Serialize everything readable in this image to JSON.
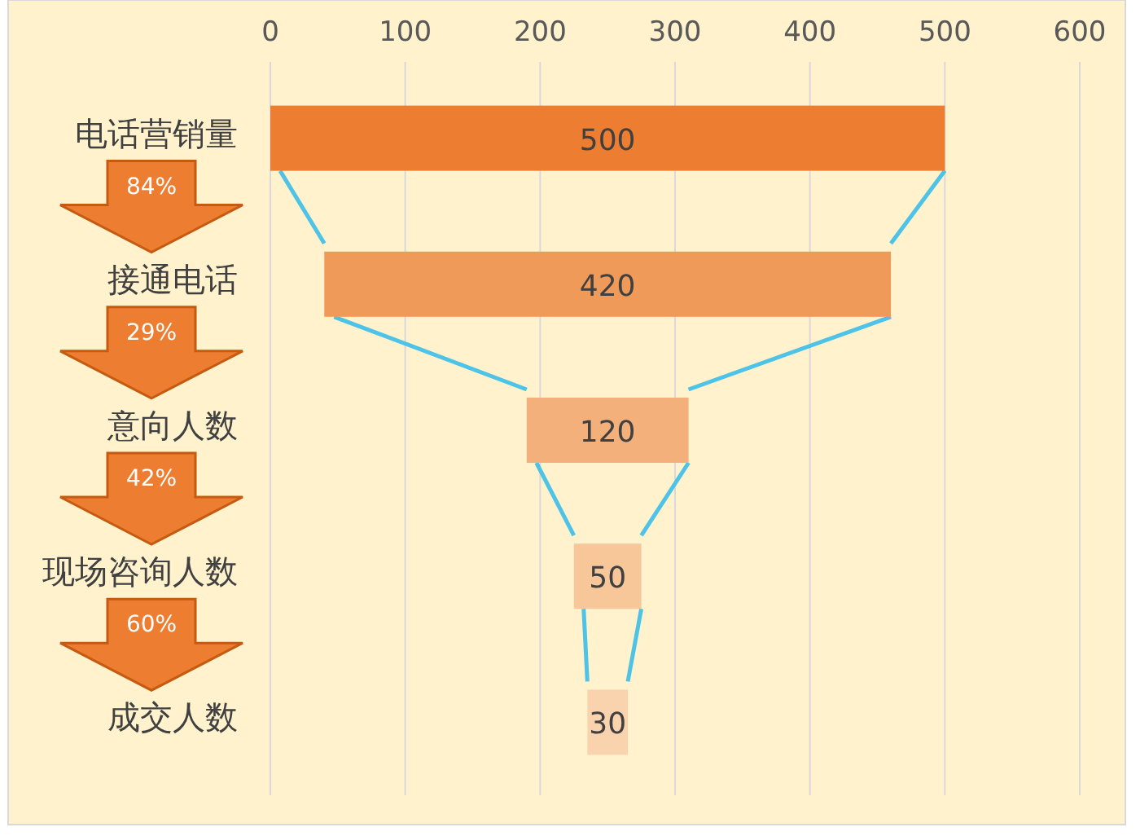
{
  "chart_data": {
    "type": "bar",
    "orientation": "horizontal",
    "categories": [
      "电话营销量",
      "接通电话",
      "意向人数",
      "现场咨询人数",
      "成交人数"
    ],
    "values": [
      500,
      420,
      120,
      50,
      30
    ],
    "base": [
      0,
      40,
      190,
      225,
      235
    ],
    "colors": [
      "#ed7d31",
      "#f09a5a",
      "#f4b07b",
      "#f7c699",
      "#f9d3ae"
    ],
    "xlim": [
      0,
      600
    ],
    "xticks": [
      0,
      100,
      200,
      300,
      400,
      500,
      600
    ],
    "grid": "x",
    "data_labels": true,
    "annotations": [
      "84%",
      "29%",
      "42%",
      "60%"
    ]
  }
}
